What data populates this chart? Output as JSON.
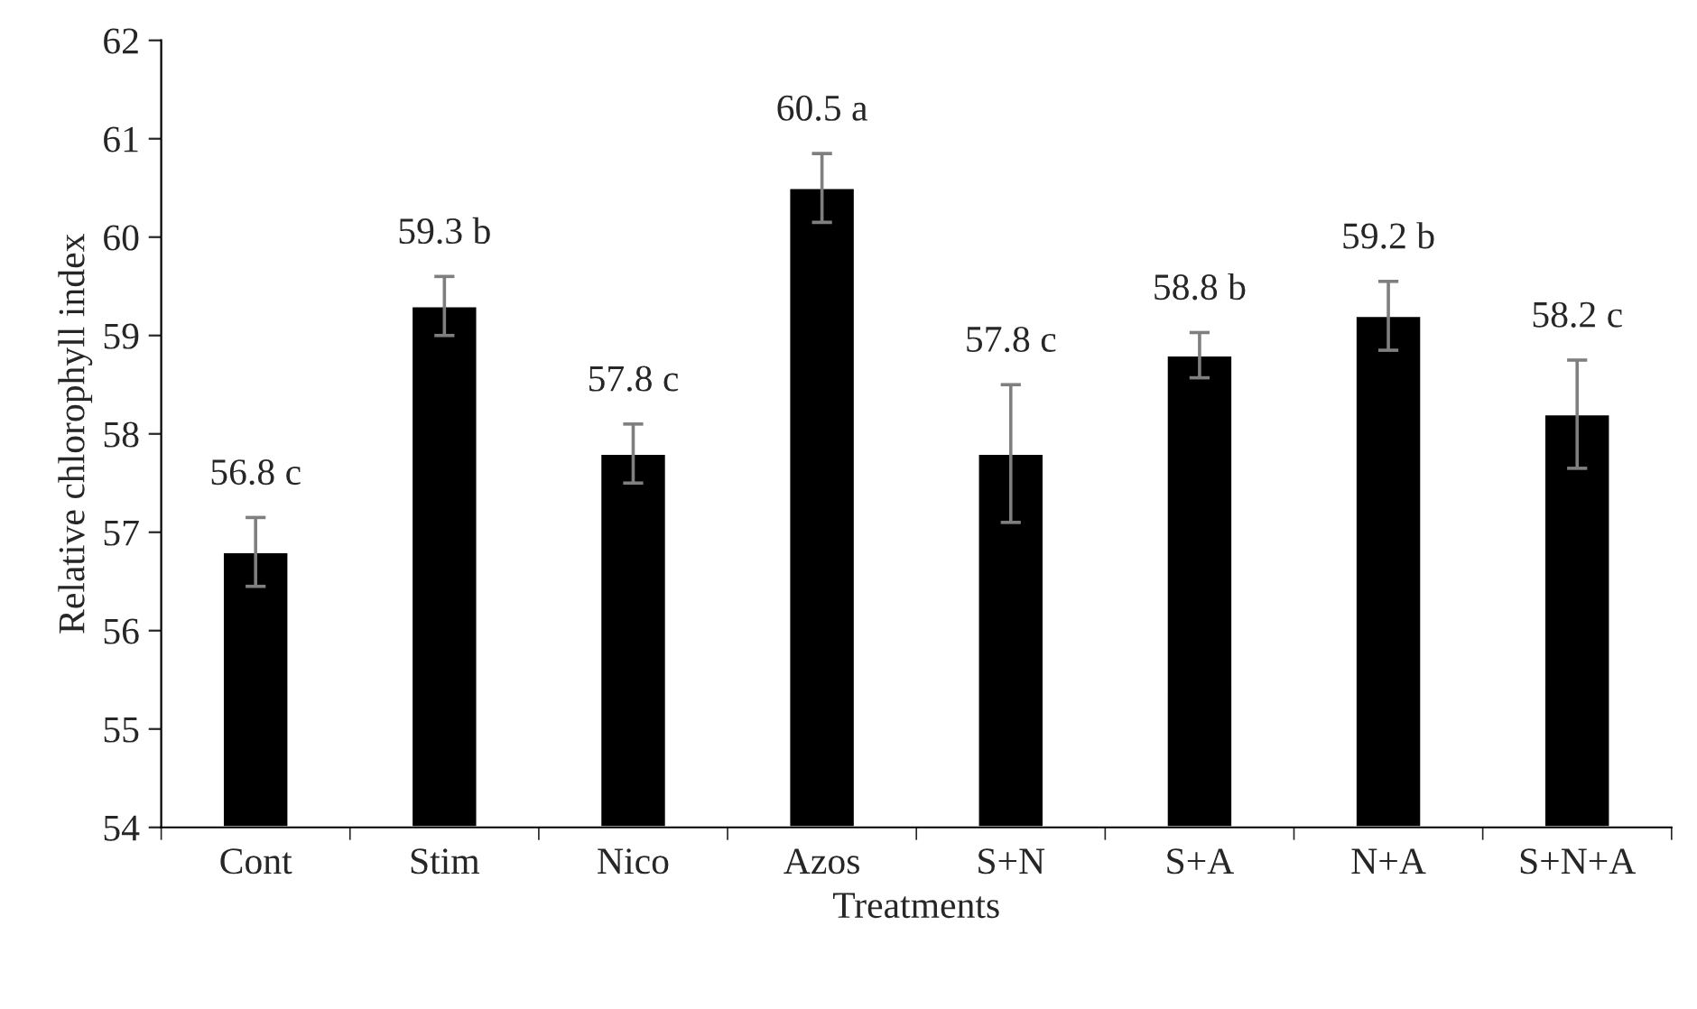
{
  "chart_data": {
    "type": "bar",
    "xlabel": "Treatments",
    "ylabel": "Relative chlorophyll index",
    "categories": [
      "Cont",
      "Stim",
      "Nico",
      "Azos",
      "S+N",
      "S+A",
      "N+A",
      "S+N+A"
    ],
    "values": [
      56.8,
      59.3,
      57.8,
      60.5,
      57.8,
      58.8,
      59.2,
      58.2
    ],
    "errors": [
      0.35,
      0.3,
      0.3,
      0.35,
      0.7,
      0.23,
      0.35,
      0.55
    ],
    "value_labels": [
      "56.8 c",
      "59.3 b",
      "57.8 c",
      "60.5 a",
      "57.8 c",
      "58.8 b",
      "59.2 b",
      "58.2 c"
    ],
    "color": "#000000",
    "ylim": [
      54,
      62
    ],
    "yticks": [
      54,
      55,
      56,
      57,
      58,
      59,
      60,
      61,
      62
    ],
    "grid": false
  }
}
